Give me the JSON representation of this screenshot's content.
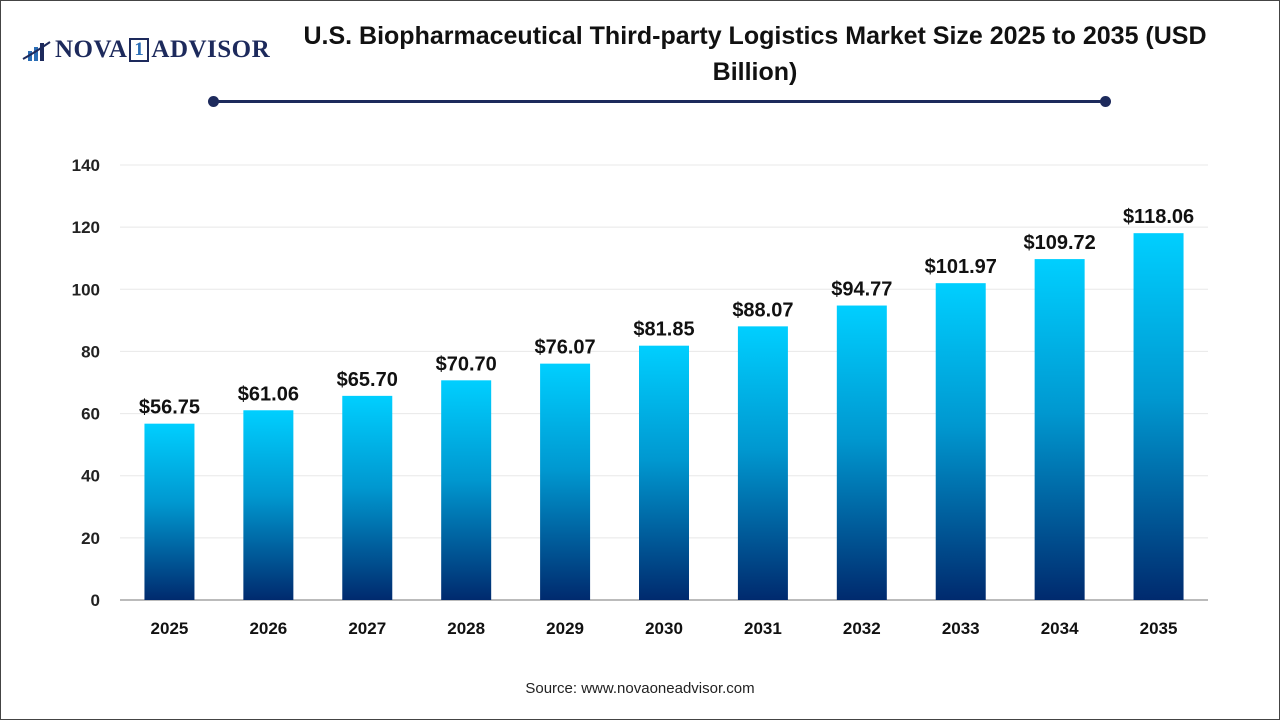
{
  "header": {
    "logo": {
      "text_left": "NOVA",
      "text_mid": "1",
      "text_right": "ADVISOR"
    },
    "title": "U.S. Biopharmaceutical Third-party Logistics Market Size 2025 to 2035 (USD Billion)"
  },
  "source": "Source: www.novaoneadvisor.com",
  "colors": {
    "bar_top": "#00cfff",
    "bar_bottom": "#002a6e",
    "accent": "#1d2a5c"
  },
  "chart_data": {
    "type": "bar",
    "categories": [
      "2025",
      "2026",
      "2027",
      "2028",
      "2029",
      "2030",
      "2031",
      "2032",
      "2033",
      "2034",
      "2035"
    ],
    "values": [
      56.75,
      61.06,
      65.7,
      70.7,
      76.07,
      81.85,
      88.07,
      94.77,
      101.97,
      109.72,
      118.06
    ],
    "data_labels": [
      "$56.75",
      "$61.06",
      "$65.70",
      "$70.70",
      "$76.07",
      "$81.85",
      "$88.07",
      "$94.77",
      "$101.97",
      "$109.72",
      "$118.06"
    ],
    "ylim": [
      0,
      140
    ],
    "yticks": [
      0,
      20,
      40,
      60,
      80,
      100,
      120,
      140
    ],
    "grid": true,
    "title": "U.S. Biopharmaceutical Third-party Logistics Market Size 2025 to 2035 (USD Billion)",
    "xlabel": "",
    "ylabel": ""
  }
}
